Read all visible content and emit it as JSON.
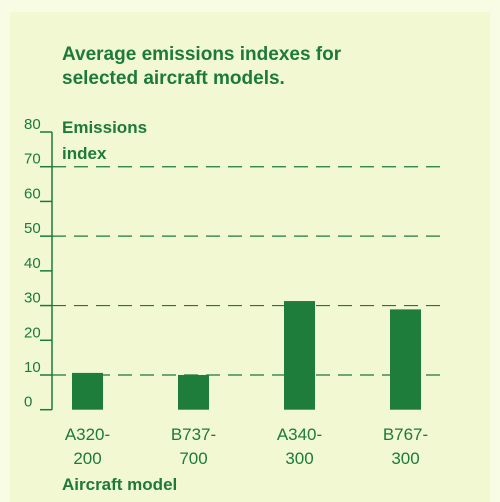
{
  "chart_data": {
    "type": "bar",
    "title": [
      "Average emissions indexes for",
      "selected aircraft models."
    ],
    "y_label": [
      "Emissions",
      "index"
    ],
    "x_label": "Aircraft model",
    "categories": [
      "A320-200",
      "B737-700",
      "A340-300",
      "B767-300"
    ],
    "values": [
      10.6,
      10,
      31.3,
      28.9
    ],
    "color": "#1e7d3a",
    "ylim": [
      0,
      80
    ],
    "yticks": [
      0,
      10,
      20,
      30,
      40,
      50,
      60,
      70,
      80
    ],
    "grid": true
  }
}
